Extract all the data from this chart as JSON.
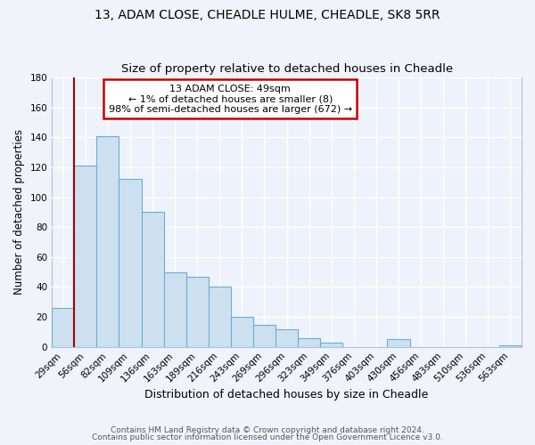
{
  "title1": "13, ADAM CLOSE, CHEADLE HULME, CHEADLE, SK8 5RR",
  "title2": "Size of property relative to detached houses in Cheadle",
  "xlabel": "Distribution of detached houses by size in Cheadle",
  "ylabel": "Number of detached properties",
  "bar_color": "#cce0f0",
  "bar_edge_color": "#6aaed6",
  "categories": [
    "29sqm",
    "56sqm",
    "82sqm",
    "109sqm",
    "136sqm",
    "163sqm",
    "189sqm",
    "216sqm",
    "243sqm",
    "269sqm",
    "296sqm",
    "323sqm",
    "349sqm",
    "376sqm",
    "403sqm",
    "430sqm",
    "456sqm",
    "483sqm",
    "510sqm",
    "536sqm",
    "563sqm"
  ],
  "values": [
    26,
    121,
    141,
    112,
    90,
    50,
    47,
    40,
    20,
    15,
    12,
    6,
    3,
    0,
    0,
    5,
    0,
    0,
    0,
    0,
    1
  ],
  "ylim": [
    0,
    180
  ],
  "yticks": [
    0,
    20,
    40,
    60,
    80,
    100,
    120,
    140,
    160,
    180
  ],
  "annotation_title": "13 ADAM CLOSE: 49sqm",
  "annotation_line1": "← 1% of detached houses are smaller (8)",
  "annotation_line2": "98% of semi-detached houses are larger (672) →",
  "annotation_box_color": "#ffffff",
  "annotation_box_edge": "#cc0000",
  "marker_line_color": "#aa0000",
  "footer1": "Contains HM Land Registry data © Crown copyright and database right 2024.",
  "footer2": "Contains public sector information licensed under the Open Government Licence v3.0.",
  "background_color": "#f0f4fa",
  "plot_bg_color": "#eef2fa",
  "grid_color": "#ffffff"
}
